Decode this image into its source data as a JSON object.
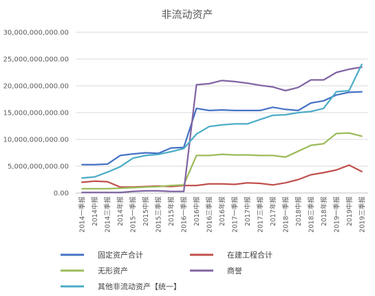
{
  "chart_data": {
    "type": "line",
    "title": "非流动资产",
    "xlabel": "",
    "ylabel": "",
    "ylim": [
      0,
      30000000000
    ],
    "yticks": [
      "0.00",
      "5,000,000,000.00",
      "10,000,000,000.00",
      "15,000,000,000.00",
      "20,000,000,000.00",
      "25,000,000,000.00",
      "30,000,000,000.00"
    ],
    "grid": true,
    "legend_position": "bottom",
    "categories": [
      "2014一季报",
      "2014中报",
      "2014三季报",
      "2014年报",
      "2015一季报",
      "2015中报",
      "2015三季报",
      "2015年报",
      "2016一季报",
      "2016中报",
      "2016三季报",
      "2016年报",
      "2017一季报",
      "2017中报",
      "2017三季报",
      "2017年报",
      "2018一季报",
      "2018中报",
      "2018三季报",
      "2018年报",
      "2019一季报",
      "2019中报",
      "2019三季报"
    ],
    "series": [
      {
        "name": "固定资产合计",
        "color": "#4472C4",
        "values": [
          5300000000,
          5300000000,
          5400000000,
          7000000000,
          7300000000,
          7500000000,
          7400000000,
          8400000000,
          8500000000,
          15800000000,
          15400000000,
          15500000000,
          15400000000,
          15400000000,
          15400000000,
          16000000000,
          15600000000,
          15400000000,
          16800000000,
          17200000000,
          18300000000,
          18800000000,
          18900000000
        ]
      },
      {
        "name": "在建工程合计",
        "color": "#C0504D",
        "values": [
          2000000000,
          2200000000,
          2100000000,
          1100000000,
          1100000000,
          1200000000,
          1300000000,
          1200000000,
          1400000000,
          1400000000,
          1700000000,
          1700000000,
          1600000000,
          1900000000,
          1800000000,
          1500000000,
          1900000000,
          2500000000,
          3400000000,
          3800000000,
          4300000000,
          5200000000,
          4000000000
        ]
      },
      {
        "name": "无形资产",
        "color": "#9BBB59",
        "values": [
          800000000,
          800000000,
          800000000,
          900000000,
          1000000000,
          1100000000,
          1200000000,
          1400000000,
          1500000000,
          7000000000,
          7000000000,
          7200000000,
          7100000000,
          7100000000,
          7000000000,
          7000000000,
          6700000000,
          7800000000,
          8900000000,
          9200000000,
          11100000000,
          11200000000,
          10600000000
        ]
      },
      {
        "name": "商誉",
        "color": "#8064A2",
        "values": [
          100000000,
          100000000,
          100000000,
          100000000,
          300000000,
          400000000,
          400000000,
          300000000,
          300000000,
          20200000000,
          20400000000,
          21000000000,
          20800000000,
          20500000000,
          20100000000,
          19800000000,
          19100000000,
          19700000000,
          21100000000,
          21100000000,
          22500000000,
          23100000000,
          23500000000
        ]
      },
      {
        "name": "其他非流动资产【统一】",
        "color": "#4BACC6",
        "values": [
          2800000000,
          3000000000,
          3900000000,
          4900000000,
          6500000000,
          7000000000,
          7200000000,
          7700000000,
          8300000000,
          11000000000,
          12400000000,
          12700000000,
          12900000000,
          12900000000,
          13700000000,
          14500000000,
          14600000000,
          15000000000,
          15200000000,
          15800000000,
          18900000000,
          19100000000,
          24000000000
        ]
      }
    ]
  }
}
